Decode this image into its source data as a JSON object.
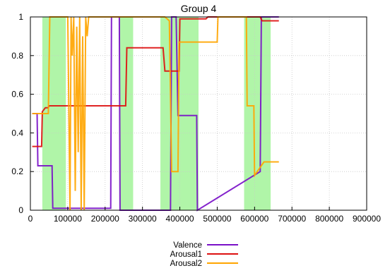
{
  "chart_data": {
    "type": "line",
    "title": "Group 4",
    "xlabel": "",
    "ylabel": "",
    "xlim": [
      0,
      900000
    ],
    "ylim": [
      0,
      1
    ],
    "grid": true,
    "legend_position": "bottom-center",
    "x_ticks": [
      "0",
      "100000",
      "200000",
      "300000",
      "400000",
      "500000",
      "600000",
      "700000",
      "800000",
      "900000"
    ],
    "y_ticks": [
      "0",
      "0.2",
      "0.4",
      "0.6",
      "0.8",
      "1"
    ],
    "highlight_regions": [
      [
        32000,
        95000
      ],
      [
        238000,
        275000
      ],
      [
        348000,
        450000
      ],
      [
        572000,
        643000
      ]
    ],
    "highlight_color": "#b0f5a8",
    "series": [
      {
        "name": "Valence",
        "color": "#7a10c8",
        "points": [
          [
            5000,
            0.5
          ],
          [
            10000,
            0.5
          ],
          [
            18000,
            0.5
          ],
          [
            20000,
            0.23
          ],
          [
            58000,
            0.23
          ],
          [
            60000,
            0.01
          ],
          [
            215000,
            0.01
          ],
          [
            217000,
            1.0
          ],
          [
            238000,
            1.0
          ],
          [
            240000,
            0.0
          ],
          [
            375000,
            0.0
          ],
          [
            378000,
            1.0
          ],
          [
            390000,
            1.0
          ],
          [
            395000,
            0.49
          ],
          [
            445000,
            0.49
          ],
          [
            447000,
            0.0
          ],
          [
            615000,
            0.2
          ],
          [
            618000,
            1.0
          ],
          [
            665000,
            1.0
          ]
        ]
      },
      {
        "name": "Arousal1",
        "color": "#dd1010",
        "points": [
          [
            5000,
            0.33
          ],
          [
            30000,
            0.33
          ],
          [
            32000,
            0.51
          ],
          [
            40000,
            0.53
          ],
          [
            48000,
            0.53
          ],
          [
            50000,
            0.54
          ],
          [
            255000,
            0.54
          ],
          [
            258000,
            0.84
          ],
          [
            355000,
            0.84
          ],
          [
            360000,
            0.72
          ],
          [
            398000,
            0.72
          ],
          [
            400000,
            0.99
          ],
          [
            470000,
            0.99
          ],
          [
            475000,
            1.0
          ],
          [
            615000,
            1.0
          ],
          [
            620000,
            0.98
          ],
          [
            665000,
            0.98
          ]
        ]
      },
      {
        "name": "Arousal2",
        "color": "#ffa500",
        "points": [
          [
            5000,
            0.5
          ],
          [
            48000,
            0.5
          ],
          [
            52000,
            1.0
          ],
          [
            100000,
            1.0
          ],
          [
            103000,
            0.5
          ],
          [
            106000,
            0.0
          ],
          [
            109000,
            1.0
          ],
          [
            112000,
            0.8
          ],
          [
            116000,
            1.0
          ],
          [
            120000,
            0.1
          ],
          [
            124000,
            0.95
          ],
          [
            128000,
            0.3
          ],
          [
            132000,
            1.0
          ],
          [
            136000,
            0.0
          ],
          [
            140000,
            0.9
          ],
          [
            144000,
            0.0
          ],
          [
            148000,
            1.0
          ],
          [
            152000,
            0.9
          ],
          [
            156000,
            1.0
          ],
          [
            200000,
            1.0
          ],
          [
            360000,
            1.0
          ],
          [
            372000,
            0.98
          ],
          [
            378000,
            0.2
          ],
          [
            395000,
            0.2
          ],
          [
            398000,
            0.87
          ],
          [
            500000,
            0.87
          ],
          [
            502000,
            1.0
          ],
          [
            578000,
            1.0
          ],
          [
            580000,
            0.54
          ],
          [
            598000,
            0.54
          ],
          [
            600000,
            0.18
          ],
          [
            625000,
            0.25
          ],
          [
            665000,
            0.25
          ]
        ]
      }
    ]
  }
}
